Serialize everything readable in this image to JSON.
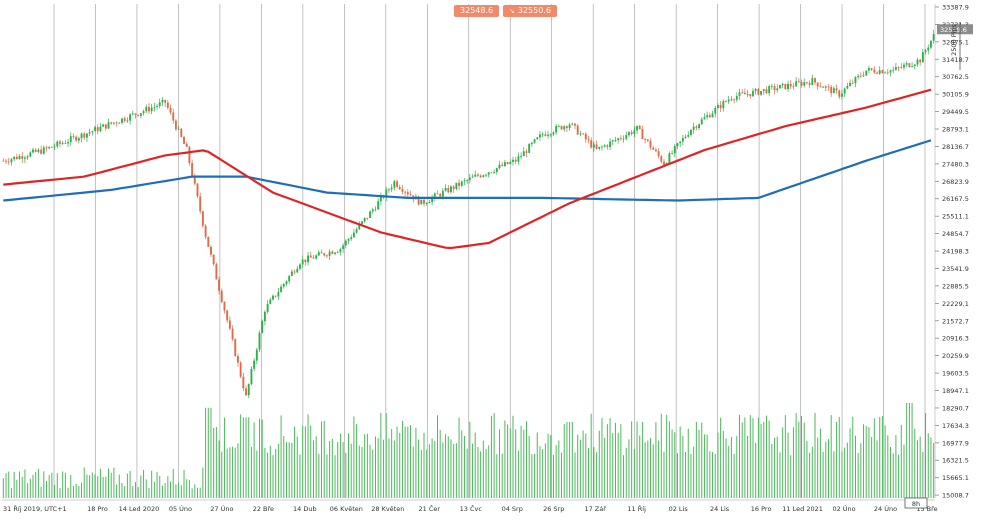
{
  "window": {
    "header_labels": [
      {
        "prefix": "",
        "value": "32548.6"
      },
      {
        "prefix": "↘",
        "value": "32550.6"
      }
    ],
    "price_axis_note": "2500 Pips",
    "current_price_tag": "32548.6",
    "timeframe": "8h",
    "colors": {
      "up": "#2bb04a",
      "down": "#e06a45",
      "ma_fast": "#e02424",
      "ma_slow": "#1e6eb8",
      "volume": "#4cba5c",
      "tag": "#f08a6a",
      "grid": "#9a9a9a"
    }
  },
  "chart_data": {
    "type": "candlestick",
    "title": "",
    "xlabel": "",
    "ylabel": "",
    "y_ticks": [
      33387.9,
      32731.3,
      32075.1,
      31418.7,
      30762.5,
      30105.9,
      29449.5,
      28793.1,
      28136.7,
      27480.3,
      26823.9,
      26167.5,
      25511.1,
      24854.7,
      24198.3,
      23541.9,
      22885.5,
      22229.1,
      21572.7,
      20916.3,
      20259.9,
      19603.5,
      18947.1,
      18290.7,
      17634.3,
      16977.9,
      16321.5,
      15665.1,
      15008.7
    ],
    "ylim": [
      14900,
      33500
    ],
    "x_ticks": [
      "31 Říj 2019, UTC+1",
      "18 Pro",
      "14 Led 2020",
      "05 Úno",
      "27 Úno",
      "22 Bře",
      "14 Dub",
      "06 Květen",
      "28 Květen",
      "21 Čer",
      "13 Čvc",
      "04 Srp",
      "26 Srp",
      "17 Zář",
      "11 Říj",
      "02 Lis",
      "24 Lis",
      "16 Pro",
      "11 Led 2021",
      "02 Úno",
      "24 Úno",
      "15 Bře"
    ],
    "price_anchors": [
      [
        0,
        27600
      ],
      [
        15,
        28000
      ],
      [
        40,
        29000
      ],
      [
        60,
        29800
      ],
      [
        68,
        28000
      ],
      [
        75,
        24800
      ],
      [
        82,
        22000
      ],
      [
        90,
        18700
      ],
      [
        97,
        22000
      ],
      [
        110,
        23800
      ],
      [
        125,
        24300
      ],
      [
        135,
        25500
      ],
      [
        145,
        26800
      ],
      [
        155,
        26000
      ],
      [
        165,
        26500
      ],
      [
        175,
        27000
      ],
      [
        190,
        27600
      ],
      [
        200,
        28600
      ],
      [
        210,
        29000
      ],
      [
        220,
        28000
      ],
      [
        235,
        28800
      ],
      [
        245,
        27500
      ],
      [
        255,
        28800
      ],
      [
        270,
        30000
      ],
      [
        285,
        30300
      ],
      [
        300,
        30600
      ],
      [
        310,
        30100
      ],
      [
        320,
        31000
      ],
      [
        330,
        31000
      ],
      [
        340,
        31400
      ],
      [
        345,
        32300
      ]
    ],
    "ma_fast": [
      [
        0,
        26700
      ],
      [
        30,
        27000
      ],
      [
        60,
        27800
      ],
      [
        75,
        28000
      ],
      [
        100,
        26400
      ],
      [
        140,
        24900
      ],
      [
        165,
        24300
      ],
      [
        180,
        24500
      ],
      [
        210,
        26000
      ],
      [
        235,
        27000
      ],
      [
        260,
        28000
      ],
      [
        290,
        28900
      ],
      [
        320,
        29600
      ],
      [
        345,
        30300
      ]
    ],
    "ma_slow": [
      [
        0,
        26100
      ],
      [
        40,
        26500
      ],
      [
        70,
        27000
      ],
      [
        90,
        27000
      ],
      [
        120,
        26400
      ],
      [
        150,
        26200
      ],
      [
        200,
        26200
      ],
      [
        250,
        26100
      ],
      [
        280,
        26200
      ],
      [
        300,
        26900
      ],
      [
        320,
        27600
      ],
      [
        345,
        28400
      ]
    ],
    "volume": {
      "base": 0.25,
      "high": 1.0,
      "high_from_index": 76,
      "peaks": [
        [
          76,
          0.95
        ],
        [
          90,
          0.85
        ],
        [
          150,
          0.75
        ],
        [
          210,
          0.8
        ],
        [
          336,
          1.0
        ]
      ]
    }
  }
}
